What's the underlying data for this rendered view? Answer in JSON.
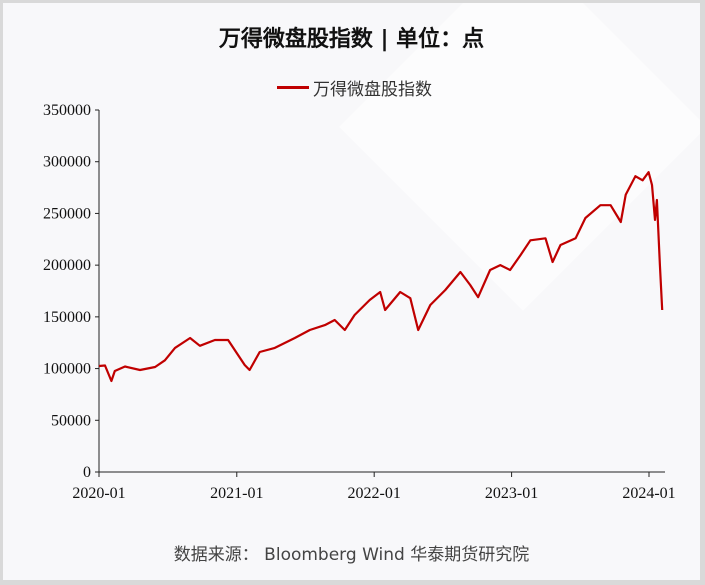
{
  "chart_data": {
    "type": "line",
    "title": "万得微盘股指数 | 单位：点",
    "legend": "万得微盘股指数",
    "legend_position": "top",
    "source": "数据来源：  Bloomberg Wind  华泰期货研究院",
    "xlabel": "",
    "ylabel": "",
    "ylim": [
      0,
      350000
    ],
    "yticks": [
      "0",
      "50000",
      "100000",
      "150000",
      "200000",
      "250000",
      "300000",
      "350000"
    ],
    "xticks": [
      "2020-01",
      "2021-01",
      "2022-01",
      "2023-01",
      "2024-01"
    ],
    "grid": false,
    "line_color": "#c00000",
    "series": [
      {
        "name": "万得微盘股指数",
        "x": [
          "2020-01-01",
          "2020-01-17",
          "2020-02-03",
          "2020-02-12",
          "2020-03-10",
          "2020-04-19",
          "2020-05-29",
          "2020-06-24",
          "2020-07-21",
          "2020-08-30",
          "2020-09-25",
          "2020-11-04",
          "2020-12-09",
          "2021-01-01",
          "2021-01-22",
          "2021-02-04",
          "2021-03-03",
          "2021-04-12",
          "2021-06-04",
          "2021-07-14",
          "2021-08-23",
          "2021-09-18",
          "2021-10-15",
          "2021-11-10",
          "2021-12-20",
          "2022-01-17",
          "2022-01-30",
          "2022-03-11",
          "2022-04-07",
          "2022-04-28",
          "2022-05-30",
          "2022-07-09",
          "2022-08-18",
          "2022-09-13",
          "2022-10-04",
          "2022-11-05",
          "2022-12-02",
          "2022-12-28",
          "2023-01-25",
          "2023-02-20",
          "2023-04-01",
          "2023-04-20",
          "2023-05-11",
          "2023-06-20",
          "2023-07-16",
          "2023-08-25",
          "2023-09-21",
          "2023-10-18",
          "2023-10-31",
          "2023-11-26",
          "2023-12-15",
          "2023-12-31",
          "2024-01-09",
          "2024-01-17",
          "2024-01-22",
          "2024-01-30",
          "2024-02-05"
        ],
        "values": [
          102500,
          103000,
          88000,
          97700,
          102000,
          98600,
          101500,
          108000,
          120000,
          129600,
          122000,
          127600,
          127600,
          115000,
          103500,
          98600,
          116000,
          120000,
          129600,
          137300,
          142000,
          147000,
          137300,
          151800,
          166300,
          174000,
          156600,
          174000,
          168000,
          137300,
          161500,
          176000,
          193400,
          180800,
          169000,
          195300,
          200000,
          195300,
          209800,
          224000,
          226000,
          203000,
          219500,
          226000,
          245600,
          258000,
          258000,
          241700,
          268000,
          286000,
          282000,
          290000,
          277500,
          243700,
          263000,
          200000,
          156600
        ]
      }
    ]
  }
}
